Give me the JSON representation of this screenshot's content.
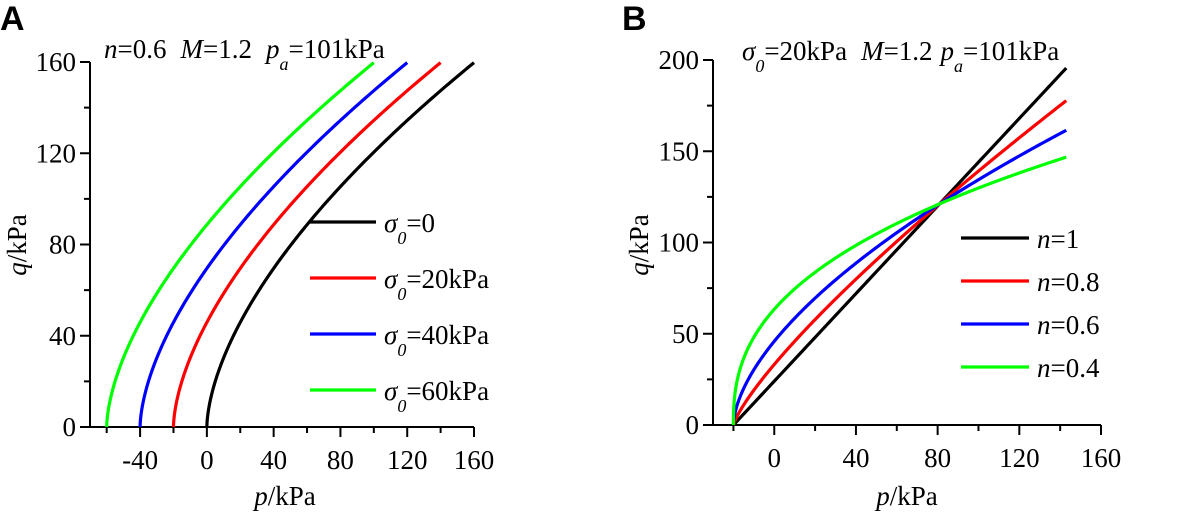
{
  "chart_data": [
    {
      "type": "line",
      "panel_label": "A",
      "annotation": {
        "n_sym": "n",
        "n_val": "=0.6",
        "m_sym": "M",
        "m_val": "=1.2",
        "pa_sym": "p",
        "pa_sub": "a",
        "pa_val": "=101kPa"
      },
      "xlabel": {
        "sym": "p",
        "unit": "/kPa"
      },
      "ylabel": {
        "sym": "q",
        "unit": "/kPa"
      },
      "xlim": [
        -70,
        160
      ],
      "ylim": [
        0,
        160
      ],
      "xticks": [
        "-40",
        "0",
        "40",
        "80",
        "120",
        "160"
      ],
      "xtick_values": [
        -40,
        0,
        40,
        80,
        120,
        160
      ],
      "yticks": [
        "0",
        "40",
        "80",
        "120",
        "160"
      ],
      "ytick_values": [
        0,
        40,
        80,
        120,
        160
      ],
      "x_minor_step": 20,
      "y_minor_step": 20,
      "legend_position": "center-right",
      "model": "q = M*pa*((p+sigma0)/pa)^n",
      "M": 1.2,
      "pa": 101,
      "series": [
        {
          "name_sym": "σ",
          "name_sub": "0",
          "name_val": "=0",
          "sigma0": 0,
          "n": 0.6,
          "p_end": 160,
          "color": "#000000"
        },
        {
          "name_sym": "σ",
          "name_sub": "0",
          "name_val": "=20kPa",
          "sigma0": 20,
          "n": 0.6,
          "p_end": 140,
          "color": "#ff0000"
        },
        {
          "name_sym": "σ",
          "name_sub": "0",
          "name_val": "=40kPa",
          "sigma0": 40,
          "n": 0.6,
          "p_end": 120,
          "color": "#0000ff"
        },
        {
          "name_sym": "σ",
          "name_sub": "0",
          "name_val": "=60kPa",
          "sigma0": 60,
          "n": 0.6,
          "p_end": 100,
          "color": "#00ff00"
        }
      ]
    },
    {
      "type": "line",
      "panel_label": "B",
      "annotation": {
        "s_sym": "σ",
        "s_sub": "0",
        "s_val": "=20kPa",
        "m_sym": "M",
        "m_val": "=1.2",
        "pa_sym": "p",
        "pa_sub": "a",
        "pa_val": "=101kPa"
      },
      "xlabel": {
        "sym": "p",
        "unit": "/kPa"
      },
      "ylabel": {
        "sym": "q",
        "unit": "/kPa"
      },
      "xlim": [
        -30,
        160
      ],
      "ylim": [
        0,
        200
      ],
      "xticks": [
        "0",
        "40",
        "80",
        "120",
        "160"
      ],
      "xtick_values": [
        0,
        40,
        80,
        120,
        160
      ],
      "yticks": [
        "0",
        "50",
        "100",
        "150",
        "200"
      ],
      "ytick_values": [
        0,
        50,
        100,
        150,
        200
      ],
      "x_minor_step": 20,
      "y_minor_step": 25,
      "legend_position": "center-right",
      "model": "q = M*pa*((p+sigma0)/pa)^n",
      "M": 1.2,
      "pa": 101,
      "series": [
        {
          "name_sym": "n",
          "name_val": "=1",
          "sigma0": 20,
          "n": 1,
          "p_end": 143,
          "color": "#000000"
        },
        {
          "name_sym": "n",
          "name_val": "=0.8",
          "sigma0": 20,
          "n": 0.8,
          "p_end": 143,
          "color": "#ff0000"
        },
        {
          "name_sym": "n",
          "name_val": "=0.6",
          "sigma0": 20,
          "n": 0.6,
          "p_end": 143,
          "color": "#0000ff"
        },
        {
          "name_sym": "n",
          "name_val": "=0.4",
          "sigma0": 20,
          "n": 0.4,
          "p_end": 143,
          "color": "#00ff00"
        }
      ]
    }
  ]
}
